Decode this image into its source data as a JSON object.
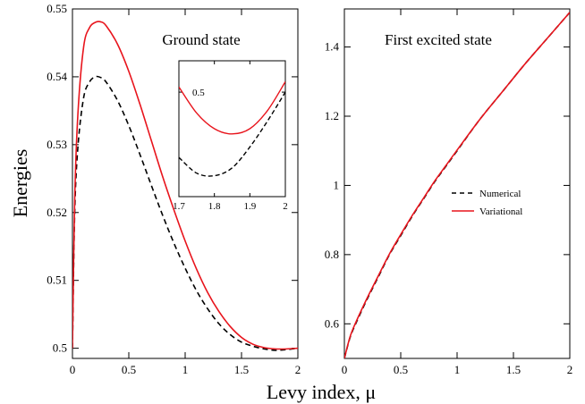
{
  "figure": {
    "ylabel": "Energies",
    "xlabel": "Levy index, μ"
  },
  "colors": {
    "numerical": "#000000",
    "variational": "#e8141c"
  },
  "chart_data": [
    {
      "type": "line",
      "panel": "left",
      "title": "Ground state",
      "xlim": [
        0,
        2
      ],
      "ylim": [
        0.4985,
        0.55
      ],
      "xticks": [
        "0",
        "0.5",
        "1",
        "1.5",
        "2"
      ],
      "yticks": [
        "0.5",
        "0.51",
        "0.52",
        "0.53",
        "0.54",
        "0.55"
      ],
      "series": [
        {
          "style": "dashed",
          "color": "#000000",
          "x": [
            0,
            0.02,
            0.05,
            0.1,
            0.15,
            0.2,
            0.25,
            0.3,
            0.4,
            0.5,
            0.6,
            0.7,
            0.8,
            0.9,
            1.0,
            1.1,
            1.2,
            1.3,
            1.4,
            1.5,
            1.6,
            1.7,
            1.8,
            1.9,
            2.0
          ],
          "y": [
            0.5,
            0.52,
            0.53,
            0.537,
            0.5392,
            0.54,
            0.5399,
            0.5392,
            0.5365,
            0.5328,
            0.5285,
            0.524,
            0.5196,
            0.5155,
            0.5118,
            0.5085,
            0.5058,
            0.5036,
            0.502,
            0.5009,
            0.5003,
            0.4999,
            0.4997,
            0.4998,
            0.5
          ]
        },
        {
          "style": "solid",
          "color": "#e8141c",
          "x": [
            0,
            0.02,
            0.05,
            0.1,
            0.15,
            0.2,
            0.25,
            0.3,
            0.4,
            0.5,
            0.6,
            0.7,
            0.8,
            0.9,
            1.0,
            1.1,
            1.2,
            1.3,
            1.4,
            1.5,
            1.6,
            1.7,
            1.8,
            1.9,
            2.0
          ],
          "y": [
            0.5,
            0.522,
            0.535,
            0.5445,
            0.5472,
            0.548,
            0.5481,
            0.5475,
            0.5448,
            0.5408,
            0.5359,
            0.5306,
            0.5253,
            0.5204,
            0.5158,
            0.5117,
            0.5082,
            0.5054,
            0.5032,
            0.5016,
            0.5006,
            0.5001,
            0.4999,
            0.4999,
            0.5
          ]
        }
      ]
    },
    {
      "type": "line",
      "panel": "inset",
      "xlim": [
        1.7,
        2.0
      ],
      "ylim": [
        0.4996,
        0.50012
      ],
      "xticks": [
        "1.7",
        "1.8",
        "1.9",
        "2"
      ],
      "yticks": [
        "0.5"
      ],
      "series": [
        {
          "style": "dashed",
          "color": "#000000",
          "x": [
            1.7,
            1.75,
            1.8,
            1.85,
            1.9,
            1.95,
            2.0
          ],
          "y": [
            0.49975,
            0.49969,
            0.49968,
            0.49971,
            0.49979,
            0.49989,
            0.5
          ]
        },
        {
          "style": "solid",
          "color": "#e8141c",
          "x": [
            1.7,
            1.75,
            1.8,
            1.85,
            1.9,
            1.95,
            2.0
          ],
          "y": [
            0.50002,
            0.49992,
            0.49986,
            0.49984,
            0.49986,
            0.49993,
            0.50004
          ]
        }
      ]
    },
    {
      "type": "line",
      "panel": "right",
      "title": "First excited state",
      "xlim": [
        0,
        2
      ],
      "ylim": [
        0.5,
        1.51
      ],
      "xticks": [
        "0",
        "0.5",
        "1",
        "1.5",
        "2"
      ],
      "yticks": [
        "0.6",
        "0.8",
        "1",
        "1.2",
        "1.4"
      ],
      "legend": {
        "position": "center-right",
        "entries": [
          "Numerical",
          "Variational"
        ]
      },
      "series": [
        {
          "name": "Numerical",
          "style": "dashed",
          "color": "#000000",
          "x": [
            0,
            0.05,
            0.1,
            0.2,
            0.3,
            0.4,
            0.5,
            0.6,
            0.7,
            0.8,
            0.9,
            1.0,
            1.2,
            1.4,
            1.6,
            1.8,
            2.0
          ],
          "y": [
            0.5,
            0.56,
            0.6,
            0.67,
            0.735,
            0.8,
            0.855,
            0.91,
            0.96,
            1.01,
            1.055,
            1.1,
            1.19,
            1.27,
            1.35,
            1.425,
            1.5
          ]
        },
        {
          "name": "Variational",
          "style": "solid",
          "color": "#e8141c",
          "x": [
            0,
            0.05,
            0.1,
            0.2,
            0.3,
            0.4,
            0.5,
            0.6,
            0.7,
            0.8,
            0.9,
            1.0,
            1.2,
            1.4,
            1.6,
            1.8,
            2.0
          ],
          "y": [
            0.5,
            0.562,
            0.603,
            0.673,
            0.738,
            0.802,
            0.858,
            0.912,
            0.962,
            1.012,
            1.057,
            1.102,
            1.19,
            1.27,
            1.35,
            1.425,
            1.5
          ]
        }
      ]
    }
  ]
}
